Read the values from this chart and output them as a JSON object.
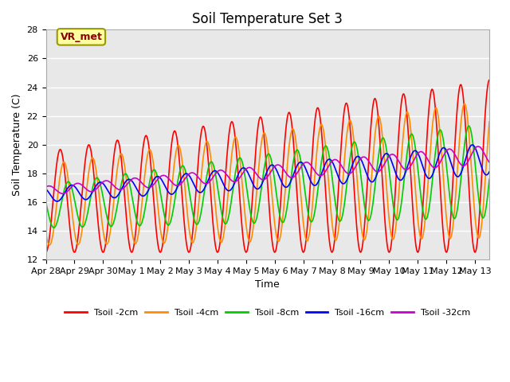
{
  "title": "Soil Temperature Set 3",
  "xlabel": "Time",
  "ylabel": "Soil Temperature (C)",
  "ylim": [
    12,
    28
  ],
  "yticks": [
    12,
    14,
    16,
    18,
    20,
    22,
    24,
    26,
    28
  ],
  "end_day": 15.5,
  "series": {
    "Tsoil -2cm": {
      "color": "#FF0000",
      "linewidth": 1.2
    },
    "Tsoil -4cm": {
      "color": "#FF8C00",
      "linewidth": 1.2
    },
    "Tsoil -8cm": {
      "color": "#00CC00",
      "linewidth": 1.2
    },
    "Tsoil -16cm": {
      "color": "#0000FF",
      "linewidth": 1.2
    },
    "Tsoil -32cm": {
      "color": "#CC00CC",
      "linewidth": 1.2
    }
  },
  "xtick_labels": [
    "Apr 28",
    "Apr 29",
    "Apr 30",
    "May 1",
    "May 2",
    "May 3",
    "May 4",
    "May 5",
    "May 6",
    "May 7",
    "May 8",
    "May 9",
    "May 10",
    "May 11",
    "May 12",
    "May 13"
  ],
  "annotation_text": "VR_met",
  "background_color": "#E8E8E8",
  "fig_background": "#FFFFFF",
  "grid_color": "#FFFFFF",
  "title_fontsize": 12,
  "axis_fontsize": 9,
  "tick_fontsize": 8
}
